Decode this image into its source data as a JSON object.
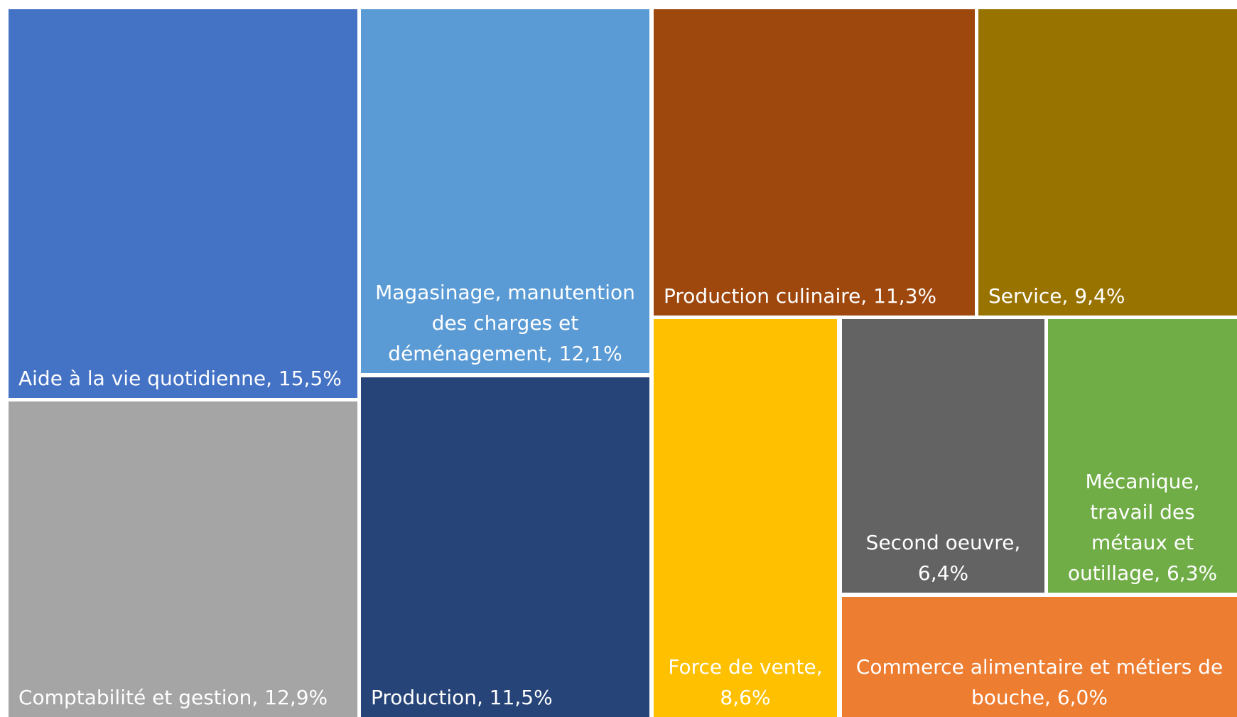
{
  "chart_data": {
    "type": "treemap",
    "title": "",
    "unit": "%",
    "items": [
      {
        "name": "Aide à la vie quotidienne",
        "value": 15.5,
        "label": "Aide à la vie quotidienne, 15,5%",
        "color": "#4472C4",
        "align": "left"
      },
      {
        "name": "Comptabilité et gestion",
        "value": 12.9,
        "label": "Comptabilité et gestion, 12,9%",
        "color": "#A5A5A5",
        "align": "left"
      },
      {
        "name": "Magasinage, manutention des charges et déménagement",
        "value": 12.1,
        "label": "Magasinage, manutention\ndes charges et\ndéménagement, 12,1%",
        "color": "#5B9BD5",
        "align": "center"
      },
      {
        "name": "Production",
        "value": 11.5,
        "label": "Production, 11,5%",
        "color": "#264478",
        "align": "left"
      },
      {
        "name": "Production culinaire",
        "value": 11.3,
        "label": "Production culinaire, 11,3%",
        "color": "#9E480E",
        "align": "left"
      },
      {
        "name": "Service",
        "value": 9.4,
        "label": "Service, 9,4%",
        "color": "#997300",
        "align": "left"
      },
      {
        "name": "Force de vente",
        "value": 8.6,
        "label": "Force de vente,\n8,6%",
        "color": "#FFC000",
        "align": "center"
      },
      {
        "name": "Second oeuvre",
        "value": 6.4,
        "label": "Second oeuvre,\n6,4%",
        "color": "#636363",
        "align": "center"
      },
      {
        "name": "Mécanique, travail des métaux et outillage",
        "value": 6.3,
        "label": "Mécanique,\ntravail des\nmétaux et\noutillage, 6,3%",
        "color": "#70AD47",
        "align": "center"
      },
      {
        "name": "Commerce alimentaire et métiers de bouche",
        "value": 6.0,
        "label": "Commerce alimentaire et métiers de\nbouche, 6,0%",
        "color": "#ED7D31",
        "align": "center"
      }
    ]
  }
}
